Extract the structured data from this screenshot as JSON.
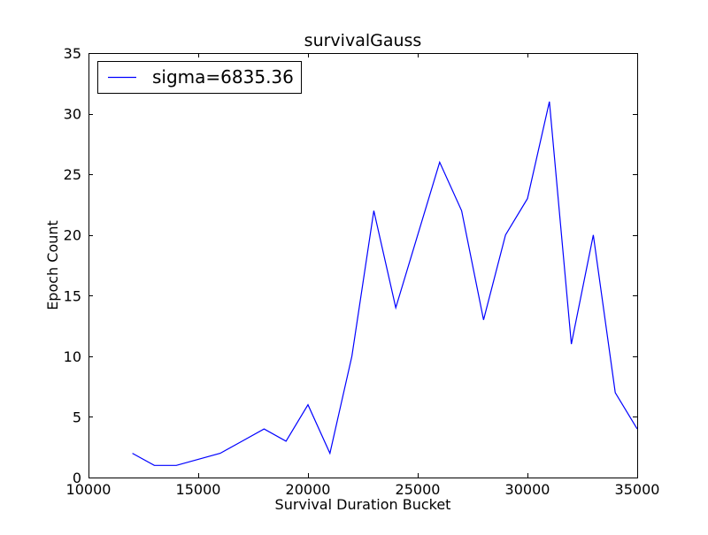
{
  "chart_data": {
    "type": "line",
    "title": "survivalGauss",
    "xlabel": "Survival Duration Bucket",
    "ylabel": "Epoch Count",
    "xlim": [
      10000,
      35000
    ],
    "ylim": [
      0,
      35
    ],
    "x_ticks": [
      10000,
      15000,
      20000,
      25000,
      30000,
      35000
    ],
    "y_ticks": [
      0,
      5,
      10,
      15,
      20,
      25,
      30,
      35
    ],
    "grid": false,
    "legend_position": "top-left",
    "series": [
      {
        "name": "sigma=6835.36",
        "color": "#0000ff",
        "x": [
          12000,
          13000,
          14000,
          15000,
          16000,
          17000,
          18000,
          19000,
          20000,
          21000,
          22000,
          23000,
          24000,
          25000,
          26000,
          27000,
          28000,
          29000,
          30000,
          31000,
          32000,
          33000,
          34000,
          35000
        ],
        "y": [
          2,
          1,
          1,
          1.5,
          2,
          3,
          4,
          3,
          6,
          2,
          10,
          22,
          14,
          20,
          26,
          22,
          13,
          20,
          23,
          31,
          11,
          20,
          7,
          4
        ]
      }
    ]
  }
}
